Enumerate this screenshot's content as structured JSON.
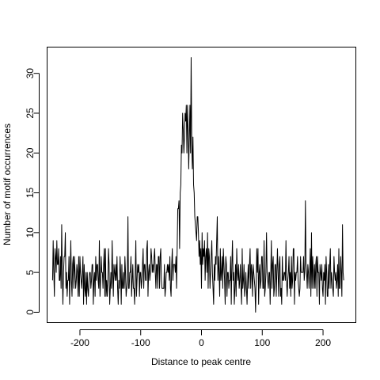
{
  "chart_data": {
    "type": "line",
    "title": "",
    "xlabel": "Distance to peak centre",
    "ylabel": "Number of motif occurrences",
    "xlim": [
      -254,
      254
    ],
    "ylim": [
      -1.3,
      33.3
    ],
    "xticks": [
      -200,
      -100,
      0,
      100,
      200
    ],
    "xtick_labels": [
      "-200",
      "-100",
      "0",
      "100",
      "200"
    ],
    "yticks": [
      0,
      5,
      10,
      15,
      20,
      25,
      30
    ],
    "ytick_labels": [
      "0",
      "5",
      "10",
      "15",
      "20",
      "25",
      "30"
    ],
    "grid": false,
    "legend": "none",
    "line_color": "#000000",
    "x_start": -245,
    "x_step": 1,
    "y": [
      4,
      9,
      5,
      2,
      8,
      7,
      5,
      9,
      6,
      6,
      8,
      4,
      4,
      7,
      3,
      11,
      5,
      1,
      5,
      7,
      7,
      10,
      3,
      5,
      2,
      4,
      4,
      7,
      1,
      5,
      9,
      4,
      2,
      6,
      7,
      3,
      7,
      5,
      3,
      4,
      6,
      5,
      2,
      7,
      2,
      7,
      5,
      4,
      3,
      5,
      7,
      1,
      6,
      3,
      2,
      5,
      1,
      5,
      3,
      2,
      4,
      5,
      5,
      3,
      4,
      6,
      6,
      1,
      4,
      5,
      2,
      7,
      4,
      6,
      6,
      4,
      3,
      9,
      2,
      4,
      7,
      5,
      5,
      3,
      6,
      8,
      2,
      8,
      2,
      4,
      2,
      4,
      8,
      6,
      1,
      3,
      5,
      3,
      9,
      5,
      2,
      6,
      5,
      4,
      6,
      4,
      7,
      3,
      1,
      4,
      3,
      7,
      5,
      1,
      6,
      3,
      3,
      5,
      3,
      7,
      5,
      2,
      3,
      4,
      12,
      3,
      3,
      5,
      5,
      7,
      2,
      4,
      6,
      3,
      3,
      1,
      5,
      9,
      2,
      4,
      6,
      5,
      6,
      2,
      5,
      5,
      3,
      4,
      6,
      8,
      3,
      6,
      6,
      4,
      4,
      8,
      9,
      2,
      5,
      6,
      4,
      5,
      8,
      7,
      5,
      6,
      5,
      7,
      8,
      5,
      3,
      6,
      6,
      3,
      7,
      7,
      3,
      7,
      8,
      4,
      3,
      3,
      3,
      3,
      6,
      2,
      3,
      5,
      5,
      6,
      5,
      6,
      4,
      7,
      3,
      2,
      6,
      8,
      4,
      6,
      6,
      6,
      5,
      7,
      3,
      8,
      13,
      13,
      14,
      8,
      15,
      16,
      21,
      20,
      25,
      23,
      20,
      22,
      25,
      24,
      26,
      20,
      26,
      23,
      18,
      22,
      26,
      20,
      32,
      21,
      18,
      22,
      16,
      15,
      12,
      11,
      10,
      9,
      12,
      12,
      10,
      7,
      9,
      6,
      8,
      3,
      10,
      6,
      8,
      7,
      9,
      4,
      7,
      8,
      5,
      10,
      3,
      8,
      7,
      3,
      5,
      7,
      9,
      5,
      3,
      1,
      6,
      4,
      7,
      6,
      9,
      12,
      4,
      7,
      5,
      2,
      8,
      4,
      5,
      7,
      3,
      8,
      6,
      4,
      1,
      7,
      6,
      2,
      5,
      5,
      3,
      4,
      4,
      7,
      1,
      6,
      9,
      4,
      5,
      1,
      3,
      6,
      2,
      8,
      5,
      4,
      6,
      3,
      4,
      6,
      3,
      1,
      8,
      3,
      4,
      6,
      2,
      3,
      5,
      3,
      1,
      4,
      6,
      3,
      6,
      8,
      3,
      6,
      5,
      2,
      6,
      5,
      4,
      3,
      0,
      4,
      8,
      5,
      8,
      1,
      5,
      6,
      3,
      4,
      7,
      7,
      3,
      3,
      9,
      2,
      3,
      5,
      10,
      5,
      4,
      3,
      5,
      5,
      1,
      5,
      9,
      3,
      6,
      7,
      2,
      3,
      6,
      6,
      2,
      5,
      8,
      5,
      2,
      6,
      7,
      2,
      3,
      1,
      7,
      4,
      4,
      5,
      5,
      4,
      9,
      4,
      2,
      4,
      5,
      7,
      3,
      5,
      2,
      7,
      3,
      4,
      8,
      8,
      1,
      5,
      4,
      5,
      5,
      7,
      4,
      3,
      2,
      3,
      7,
      5,
      5,
      5,
      5,
      7,
      4,
      5,
      14,
      6,
      5,
      3,
      6,
      5,
      3,
      5,
      8,
      2,
      10,
      3,
      7,
      5,
      3,
      6,
      3,
      6,
      7,
      2,
      7,
      5,
      5,
      1,
      6,
      5,
      4,
      6,
      3,
      2,
      5,
      4,
      6,
      1,
      7,
      5,
      2,
      2,
      6,
      3,
      6,
      8,
      3,
      5,
      4,
      3,
      2,
      7,
      5,
      4,
      5,
      3,
      4,
      6,
      2,
      8,
      3,
      3,
      7,
      5,
      2,
      11,
      5,
      4
    ]
  }
}
